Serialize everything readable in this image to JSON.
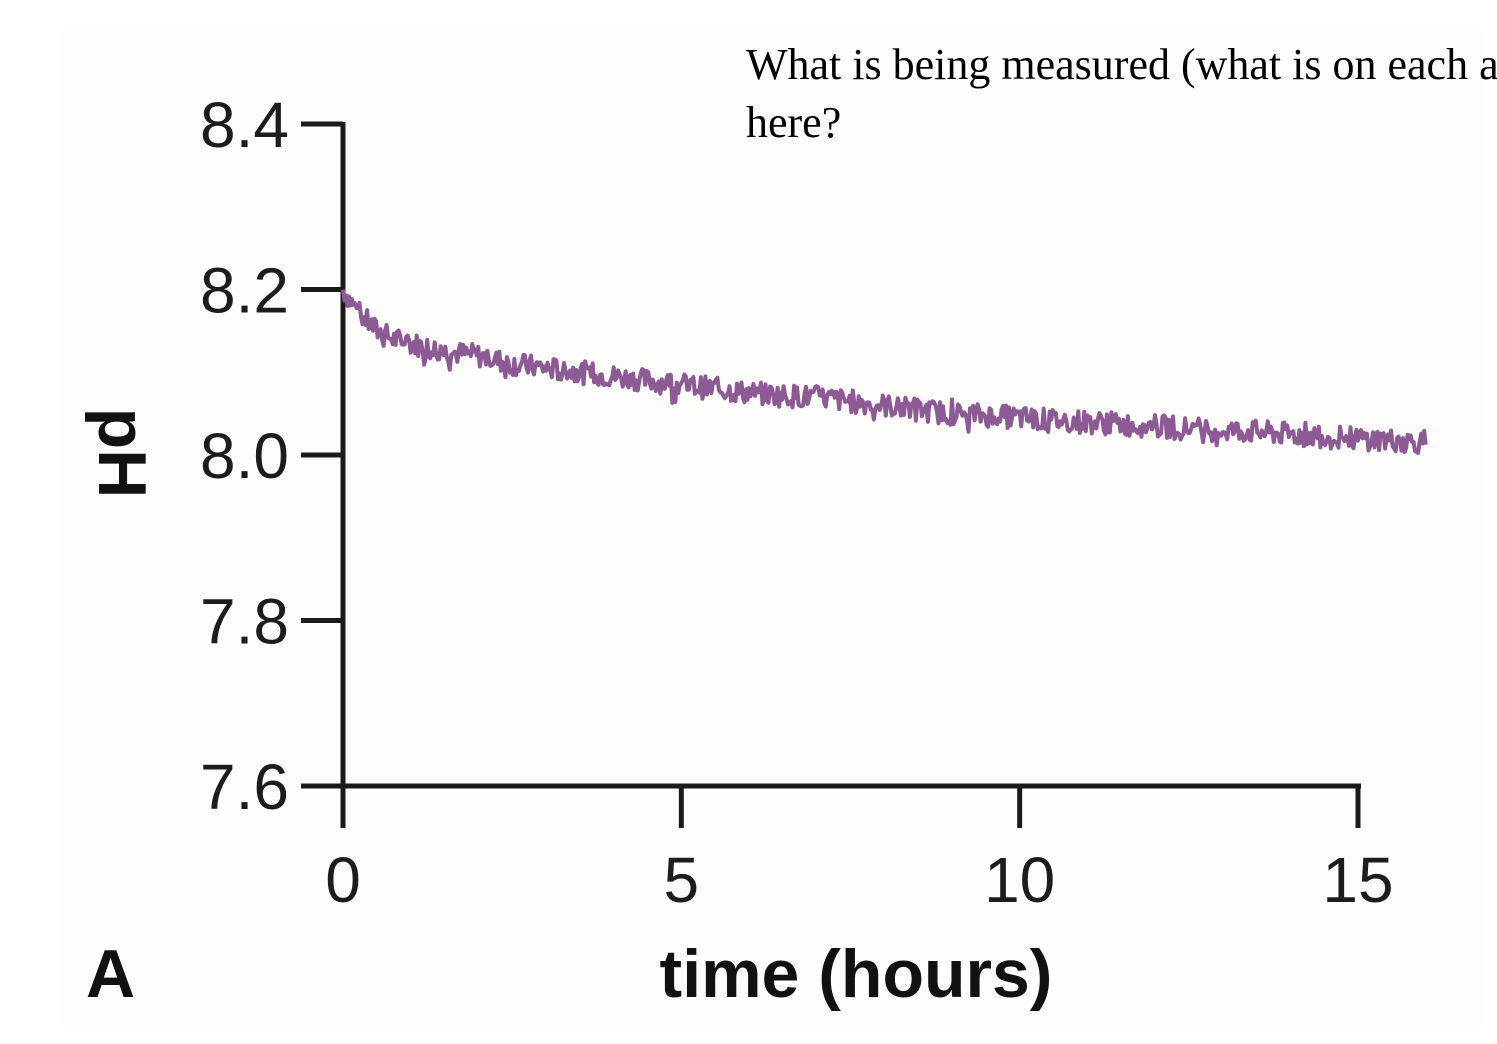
{
  "question": {
    "text": "What is being measured (what is on each axis)\nhere?"
  },
  "chart_data": {
    "type": "line",
    "panel_label": "A",
    "xlabel": "time (hours)",
    "ylabel": "pH",
    "xlim": [
      0,
      16
    ],
    "ylim": [
      7.6,
      8.4
    ],
    "x_ticks": [
      0,
      5,
      10,
      15
    ],
    "y_ticks": [
      7.6,
      7.8,
      8.0,
      8.2,
      8.4
    ],
    "x_tick_labels": [
      "0",
      "5",
      "10",
      "15"
    ],
    "y_tick_labels": [
      "7.6",
      "7.8",
      "8.0",
      "8.2",
      "8.4"
    ],
    "grid": false,
    "color": "#8e5a96",
    "series": [
      {
        "x": [
          0,
          0.25,
          0.5,
          0.75,
          1,
          1.5,
          2,
          2.5,
          3,
          3.5,
          4,
          4.5,
          5,
          5.5,
          6,
          6.5,
          7,
          7.5,
          8,
          8.5,
          9,
          9.5,
          10,
          10.5,
          11,
          11.5,
          12,
          12.5,
          13,
          13.5,
          14,
          14.5,
          15,
          15.5,
          16
        ],
        "y": [
          8.2,
          8.17,
          8.15,
          8.14,
          8.135,
          8.125,
          8.12,
          8.11,
          8.105,
          8.1,
          8.095,
          8.09,
          8.085,
          8.08,
          8.075,
          8.072,
          8.07,
          8.065,
          8.06,
          8.055,
          8.05,
          8.048,
          8.045,
          8.042,
          8.04,
          8.037,
          8.035,
          8.032,
          8.03,
          8.028,
          8.025,
          8.022,
          8.02,
          8.018,
          8.015
        ]
      }
    ]
  }
}
